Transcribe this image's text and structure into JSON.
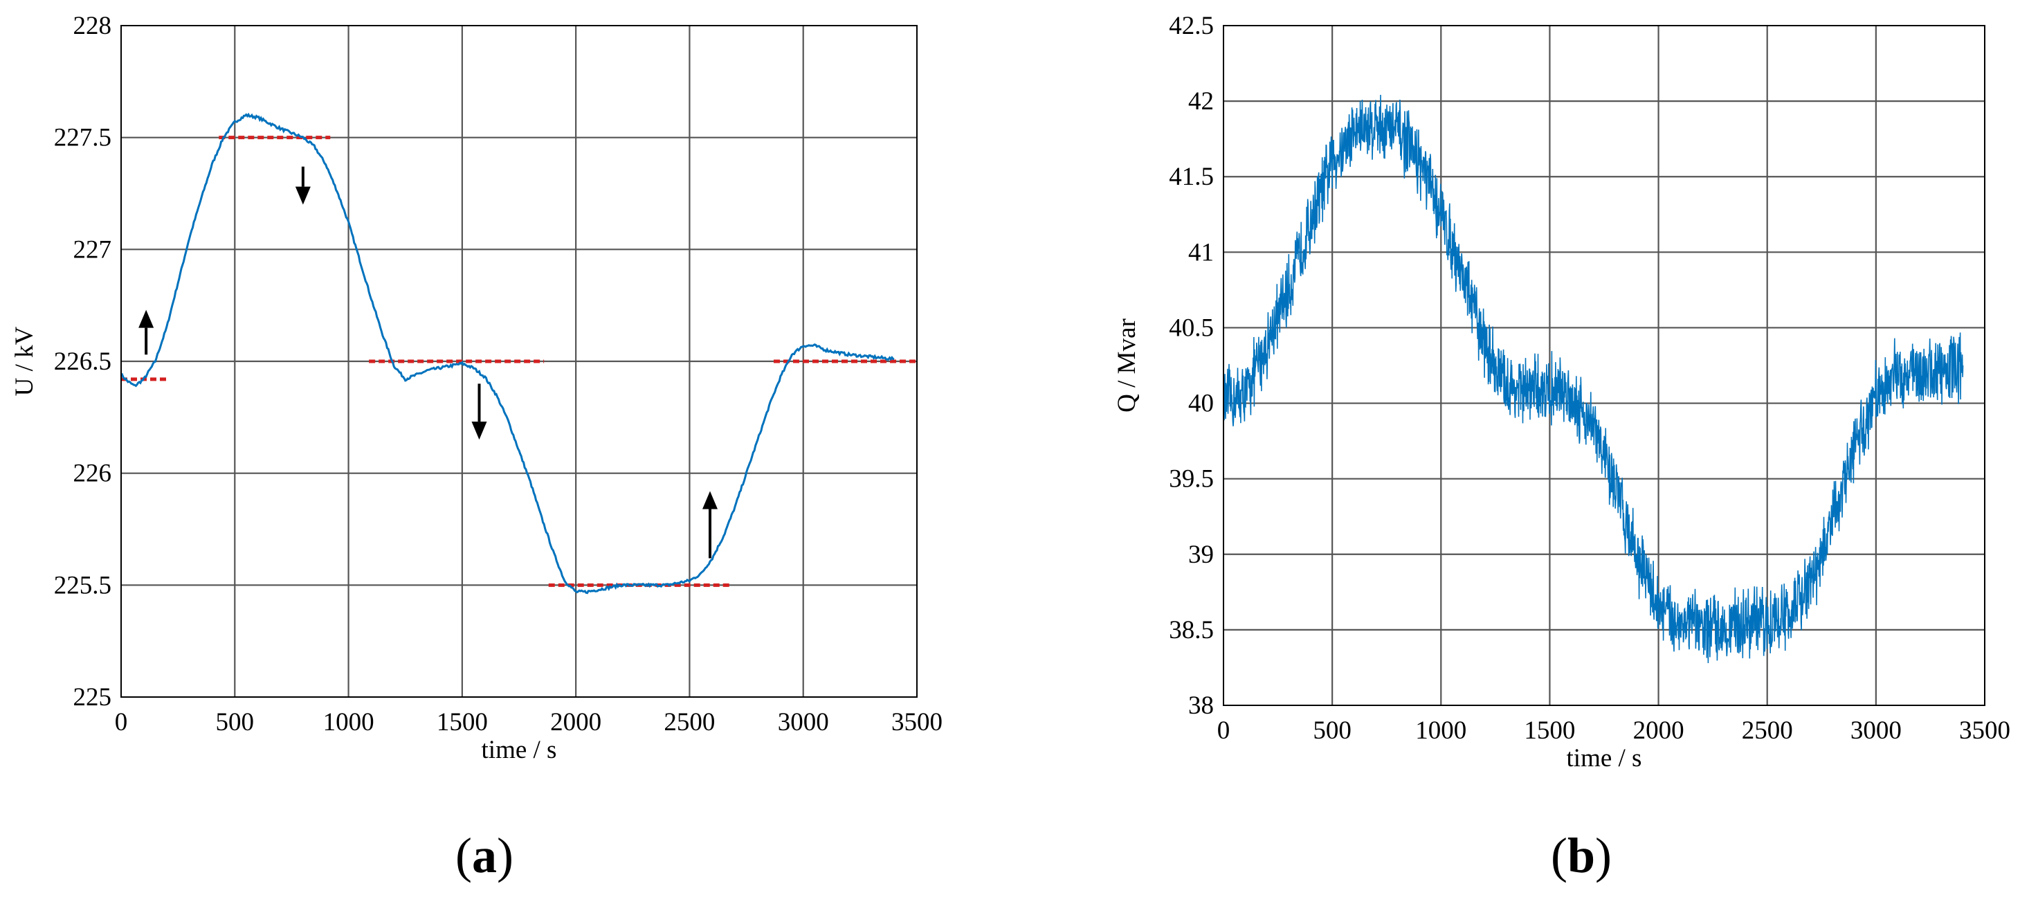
{
  "chart_data": [
    {
      "panel": "a",
      "type": "line",
      "caption_letter": "a",
      "xlabel": "time / s",
      "ylabel": "U / kV",
      "xlim": [
        0,
        3500
      ],
      "ylim": [
        225,
        228
      ],
      "xticks": [
        0,
        500,
        1000,
        1500,
        2000,
        2500,
        3000,
        3500
      ],
      "yticks": [
        225,
        225.5,
        226,
        226.5,
        227,
        227.5,
        228
      ],
      "grid": true,
      "colors": {
        "series": "#0072BD",
        "reference": "#D42020",
        "arrow": "#000000"
      },
      "series": [
        {
          "x": [
            0,
            30,
            60,
            100,
            150,
            200,
            250,
            300,
            350,
            400,
            450,
            500,
            550,
            600,
            700,
            800,
            850,
            900,
            950,
            1000,
            1050,
            1100,
            1150,
            1200,
            1250,
            1300,
            1350,
            1400,
            1450,
            1500,
            1550,
            1600,
            1650,
            1700,
            1750,
            1800,
            1850,
            1900,
            1950,
            2000,
            2050,
            2100,
            2200,
            2300,
            2400,
            2500,
            2550,
            2600,
            2650,
            2700,
            2750,
            2800,
            2850,
            2900,
            2950,
            3000,
            3050,
            3100,
            3200,
            3300,
            3400
          ],
          "y": [
            226.44,
            226.41,
            226.39,
            226.42,
            226.5,
            226.65,
            226.85,
            227.05,
            227.22,
            227.38,
            227.5,
            227.57,
            227.6,
            227.59,
            227.54,
            227.5,
            227.46,
            227.38,
            227.26,
            227.12,
            226.95,
            226.78,
            226.62,
            226.48,
            226.42,
            226.44,
            226.46,
            226.47,
            226.48,
            226.49,
            226.47,
            226.43,
            226.35,
            226.24,
            226.1,
            225.96,
            225.8,
            225.65,
            225.52,
            225.47,
            225.47,
            225.48,
            225.5,
            225.5,
            225.5,
            225.52,
            225.55,
            225.62,
            225.72,
            225.85,
            226.0,
            226.15,
            226.3,
            226.43,
            226.53,
            226.57,
            226.57,
            226.55,
            226.53,
            226.52,
            226.51
          ]
        }
      ],
      "reference_levels": [
        {
          "x_start": 0,
          "x_end": 200,
          "y": 226.42
        },
        {
          "x_start": 430,
          "x_end": 920,
          "y": 227.5
        },
        {
          "x_start": 1090,
          "x_end": 1860,
          "y": 226.5
        },
        {
          "x_start": 1880,
          "x_end": 2680,
          "y": 225.5
        },
        {
          "x_start": 2870,
          "x_end": 3500,
          "y": 226.5
        }
      ],
      "arrows": [
        {
          "x": 110,
          "y_from": 226.53,
          "y_to": 226.73,
          "direction": "up"
        },
        {
          "x": 800,
          "y_from": 227.37,
          "y_to": 227.2,
          "direction": "down"
        },
        {
          "x": 1575,
          "y_from": 226.4,
          "y_to": 226.15,
          "direction": "down"
        },
        {
          "x": 2590,
          "y_from": 225.62,
          "y_to": 225.92,
          "direction": "up"
        }
      ]
    },
    {
      "panel": "b",
      "type": "line",
      "caption_letter": "b",
      "xlabel": "time / s",
      "ylabel": "Q / Mvar",
      "xlim": [
        0,
        3500
      ],
      "ylim": [
        38,
        42.5
      ],
      "xticks": [
        0,
        500,
        1000,
        1500,
        2000,
        2500,
        3000,
        3500
      ],
      "yticks": [
        38,
        38.5,
        39,
        39.5,
        40,
        40.5,
        41,
        41.5,
        42,
        42.5
      ],
      "grid": true,
      "colors": {
        "series": "#0072BD"
      },
      "noise_amplitude": 0.22,
      "series": [
        {
          "x": [
            0,
            100,
            200,
            300,
            400,
            500,
            600,
            700,
            800,
            900,
            1000,
            1100,
            1200,
            1300,
            1400,
            1500,
            1600,
            1700,
            1800,
            1900,
            2000,
            2100,
            2200,
            2300,
            2400,
            2500,
            2600,
            2700,
            2800,
            2900,
            3000,
            3100,
            3200,
            3300,
            3400
          ],
          "y": [
            40.0,
            40.05,
            40.4,
            40.75,
            41.2,
            41.6,
            41.8,
            41.85,
            41.8,
            41.6,
            41.25,
            40.85,
            40.4,
            40.1,
            40.08,
            40.1,
            40.05,
            39.85,
            39.45,
            39.0,
            38.65,
            38.55,
            38.52,
            38.52,
            38.55,
            38.55,
            38.6,
            38.8,
            39.2,
            39.7,
            40.05,
            40.2,
            40.2,
            40.22,
            40.25
          ]
        }
      ]
    }
  ]
}
